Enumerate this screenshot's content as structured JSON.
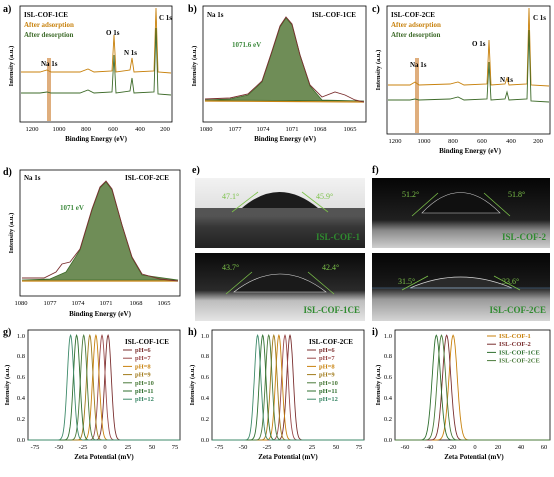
{
  "colors": {
    "orange": "#c8820e",
    "green": "#3e6b2a",
    "olive": "#5c7a3a",
    "fill": "#6f8d57",
    "brown": "#7a2f2f",
    "band": "#d9a066",
    "annot": "#3e8a3e",
    "photo_label": "#2f8a2f",
    "angle": "#7cc24a"
  },
  "panels": {
    "a": {
      "letter": "a)",
      "sample": "ISL-COF-1CE",
      "legend": [
        "After adsorption",
        "After desorption"
      ],
      "peaks": [
        "Na 1s",
        "O 1s",
        "N 1s",
        "C 1s"
      ],
      "xlabel": "Binding Energy (eV)",
      "ylabel": "Intensity (a.u.)",
      "xticks": [
        "1200",
        "1000",
        "800",
        "600",
        "400",
        "200"
      ]
    },
    "b": {
      "letter": "b)",
      "element": "Na 1s",
      "sample": "ISL-COF-1CE",
      "peak_label": "1071.6 eV",
      "xlabel": "Binding Energy (eV)",
      "ylabel": "Intensity (a.u.)",
      "xticks": [
        "1080",
        "1077",
        "1074",
        "1071",
        "1068",
        "1065"
      ]
    },
    "c": {
      "letter": "c)",
      "sample": "ISL-COF-2CE",
      "legend": [
        "After adsorption",
        "After desorption"
      ],
      "peaks": [
        "Na 1s",
        "O 1s",
        "N 1s",
        "C 1s"
      ],
      "xlabel": "Binding Energy (eV)",
      "ylabel": "Intensity (a.u.)",
      "xticks": [
        "1200",
        "1000",
        "800",
        "600",
        "400",
        "200"
      ]
    },
    "d": {
      "letter": "d)",
      "element": "Na 1s",
      "sample": "ISL-COF-2CE",
      "peak_label": "1071 eV",
      "xlabel": "Binding Energy (eV)",
      "ylabel": "Intensity (a.u.)",
      "xticks": [
        "1080",
        "1077",
        "1074",
        "1071",
        "1068",
        "1065"
      ]
    },
    "e": {
      "letter": "e)"
    },
    "f": {
      "letter": "f)"
    },
    "photos": [
      {
        "label": "ISL-COF-1",
        "left_angle": "47.1°",
        "right_angle": "45.9°"
      },
      {
        "label": "ISL-COF-2",
        "left_angle": "51.2°",
        "right_angle": "51.8°"
      },
      {
        "label": "ISL-COF-1CE",
        "left_angle": "43.7°",
        "right_angle": "42.4°"
      },
      {
        "label": "ISL-COF-2CE",
        "left_angle": "31.5°",
        "right_angle": "33.6°"
      }
    ],
    "g": {
      "letter": "g)",
      "sample": "ISL-COF-1CE",
      "xlabel": "Zeta Potential (mV)",
      "ylabel": "Intensity (a.u.)",
      "xticks": [
        "-75",
        "-50",
        "-25",
        "0",
        "25",
        "50",
        "75"
      ],
      "yticks": [
        "0.0",
        "0.2",
        "0.4",
        "0.6",
        "0.8",
        "1.0"
      ]
    },
    "h": {
      "letter": "h)",
      "sample": "ISL-COF-2CE",
      "xlabel": "Zeta Potential (mV)",
      "ylabel": "Intensity (a.u.)",
      "xticks": [
        "-75",
        "-50",
        "-25",
        "0",
        "25",
        "50",
        "75"
      ],
      "yticks": [
        "0.0",
        "0.2",
        "0.4",
        "0.6",
        "0.8",
        "1.0"
      ]
    },
    "i": {
      "letter": "i)",
      "xlabel": "Zeta Potential (mV)",
      "ylabel": "Intensity (a.u.)",
      "xticks": [
        "-60",
        "-40",
        "-20",
        "0",
        "20",
        "40",
        "60"
      ],
      "yticks": [
        "0.0",
        "0.2",
        "0.4",
        "0.6",
        "0.8",
        "1.0"
      ]
    }
  },
  "chart_data": [
    {
      "panel": "g",
      "type": "line",
      "xlim": [
        -75,
        75
      ],
      "ylim": [
        0,
        1.05
      ],
      "series": [
        {
          "name": "pH=6",
          "center": 4,
          "color": "#7a2f2f"
        },
        {
          "name": "pH=7",
          "center": -2,
          "color": "#9a4a4a"
        },
        {
          "name": "pH=8",
          "center": -8,
          "color": "#c8820e"
        },
        {
          "name": "pH=9",
          "center": -14,
          "color": "#a07a1a"
        },
        {
          "name": "pH=10",
          "center": -20,
          "color": "#4a7a3a"
        },
        {
          "name": "pH=11",
          "center": -27,
          "color": "#2f6f2f"
        },
        {
          "name": "pH=12",
          "center": -33,
          "color": "#3e8a6a"
        }
      ]
    },
    {
      "panel": "h",
      "type": "line",
      "xlim": [
        -75,
        75
      ],
      "ylim": [
        0,
        1.05
      ],
      "series": [
        {
          "name": "pH=6",
          "center": 2,
          "color": "#7a2f2f"
        },
        {
          "name": "pH=7",
          "center": -3,
          "color": "#9a4a4a"
        },
        {
          "name": "pH=8",
          "center": -9,
          "color": "#c8820e"
        },
        {
          "name": "pH=9",
          "center": -14,
          "color": "#a07a1a"
        },
        {
          "name": "pH=10",
          "center": -19,
          "color": "#4a7a3a"
        },
        {
          "name": "pH=11",
          "center": -25,
          "color": "#2f6f2f"
        },
        {
          "name": "pH=12",
          "center": -30,
          "color": "#3e8a6a"
        }
      ]
    },
    {
      "panel": "i",
      "type": "line",
      "xlim": [
        -60,
        60
      ],
      "ylim": [
        0,
        1.05
      ],
      "series": [
        {
          "name": "ISL-COF-1",
          "center": -15,
          "color": "#c8820e"
        },
        {
          "name": "ISL-COF-2",
          "center": -20,
          "color": "#7a2f2f"
        },
        {
          "name": "ISL-COF-1CE",
          "center": -28,
          "color": "#2f6f2f"
        },
        {
          "name": "ISL-COF-2CE",
          "center": -24,
          "color": "#4a7a3a"
        }
      ]
    }
  ]
}
